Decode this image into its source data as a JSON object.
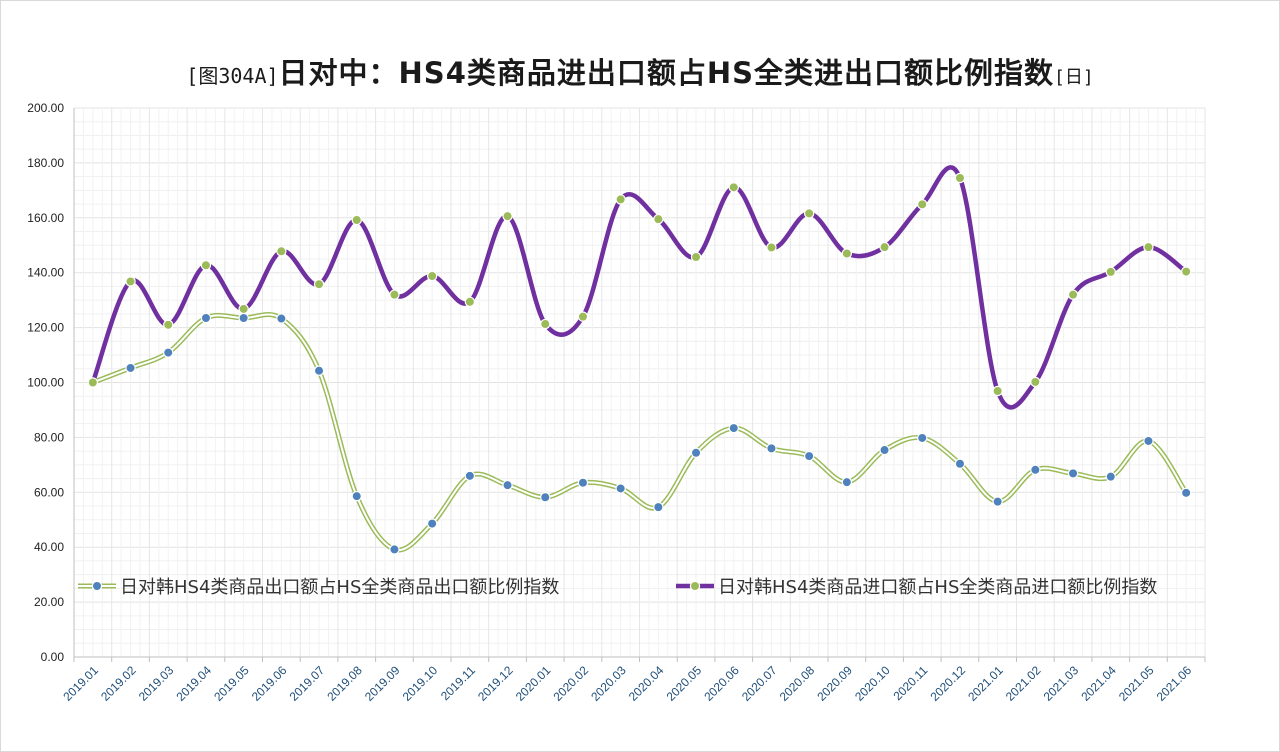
{
  "title": {
    "prefix": "[图304A]",
    "main": "日对中：HS4类商品进出口额占HS全类进出口额比例指数",
    "suffix": "[日]"
  },
  "chart_data": {
    "type": "line",
    "categories": [
      "2019.01",
      "2019.02",
      "2019.03",
      "2019.04",
      "2019.05",
      "2019.06",
      "2019.07",
      "2019.08",
      "2019.09",
      "2019.10",
      "2019.11",
      "2019.12",
      "2020.01",
      "2020.02",
      "2020.03",
      "2020.04",
      "2020.05",
      "2020.06",
      "2020.07",
      "2020.08",
      "2020.09",
      "2020.10",
      "2020.11",
      "2020.12",
      "2021.01",
      "2021.02",
      "2021.03",
      "2021.04",
      "2021.05",
      "2021.06"
    ],
    "ylim": [
      0,
      200
    ],
    "yticks": [
      "0.00",
      "20.00",
      "40.00",
      "60.00",
      "80.00",
      "100.00",
      "120.00",
      "140.00",
      "160.00",
      "180.00",
      "200.00"
    ],
    "grid": true,
    "legend_position": "bottom-inside",
    "series": [
      {
        "name": "日对韩HS4类商品出口额占HS全类商品出口额比例指数",
        "line_color": "#9bbb59",
        "marker_color": "#4f81bd",
        "values": [
          100.0,
          105.3,
          110.9,
          123.5,
          123.5,
          123.3,
          104.3,
          58.6,
          39.2,
          48.6,
          66.0,
          62.6,
          58.2,
          63.5,
          61.4,
          54.6,
          74.4,
          83.4,
          76.0,
          73.2,
          63.7,
          75.4,
          79.8,
          70.4,
          56.6,
          68.2,
          66.9,
          65.7,
          78.7,
          59.8
        ]
      },
      {
        "name": "日对韩HS4类商品进口额占HS全类商品进口额比例指数",
        "line_color": "#7030a0",
        "marker_color": "#9bbb59",
        "values": [
          100.0,
          136.8,
          121.0,
          142.7,
          126.8,
          147.8,
          135.8,
          159.2,
          132.0,
          138.8,
          129.4,
          160.6,
          121.3,
          124.0,
          166.7,
          159.5,
          145.7,
          171.1,
          149.2,
          161.6,
          147.0,
          149.3,
          164.9,
          174.5,
          96.9,
          100.2,
          132.0,
          140.3,
          149.3,
          140.4
        ]
      }
    ]
  }
}
